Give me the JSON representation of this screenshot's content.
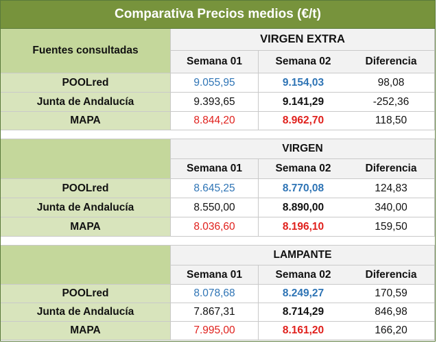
{
  "title": "Comparativa Precios  medios (€/t)",
  "header": {
    "sources_label": "Fuentes consultadas",
    "week1": "Semana 01",
    "week2": "Semana 02",
    "diff": "Diferencia"
  },
  "blocks": [
    {
      "category": "VIRGEN EXTRA",
      "rows": [
        {
          "source": "POOLred",
          "w1": "9.055,95",
          "w2": "9.154,03",
          "diff": "98,08"
        },
        {
          "source": "Junta de Andalucía",
          "w1": "9.393,65",
          "w2": "9.141,29",
          "diff": "-252,36"
        },
        {
          "source": "MAPA",
          "w1": "8.844,20",
          "w2": "8.962,70",
          "diff": "118,50"
        }
      ]
    },
    {
      "category": "VIRGEN",
      "rows": [
        {
          "source": "POOLred",
          "w1": "8.645,25",
          "w2": "8.770,08",
          "diff": "124,83"
        },
        {
          "source": "Junta de Andalucía",
          "w1": "8.550,00",
          "w2": "8.890,00",
          "diff": "340,00"
        },
        {
          "source": "MAPA",
          "w1": "8.036,60",
          "w2": "8.196,10",
          "diff": "159,50"
        }
      ]
    },
    {
      "category": "LAMPANTE",
      "rows": [
        {
          "source": "POOLred",
          "w1": "8.078,68",
          "w2": "8.249,27",
          "diff": "170,59"
        },
        {
          "source": "Junta de Andalucía",
          "w1": "7.867,31",
          "w2": "8.714,29",
          "diff": "846,98"
        },
        {
          "source": "MAPA",
          "w1": "7.995,00",
          "w2": "8.161,20",
          "diff": "166,20"
        }
      ]
    }
  ],
  "colors": {
    "title_bg": "#77933c",
    "source_header_bg": "#c4d79b",
    "source_cell_bg": "#d8e4bc",
    "header_bg": "#f2f2f2",
    "poolred_text": "#2e74b5",
    "mapa_text": "#e0201c"
  }
}
